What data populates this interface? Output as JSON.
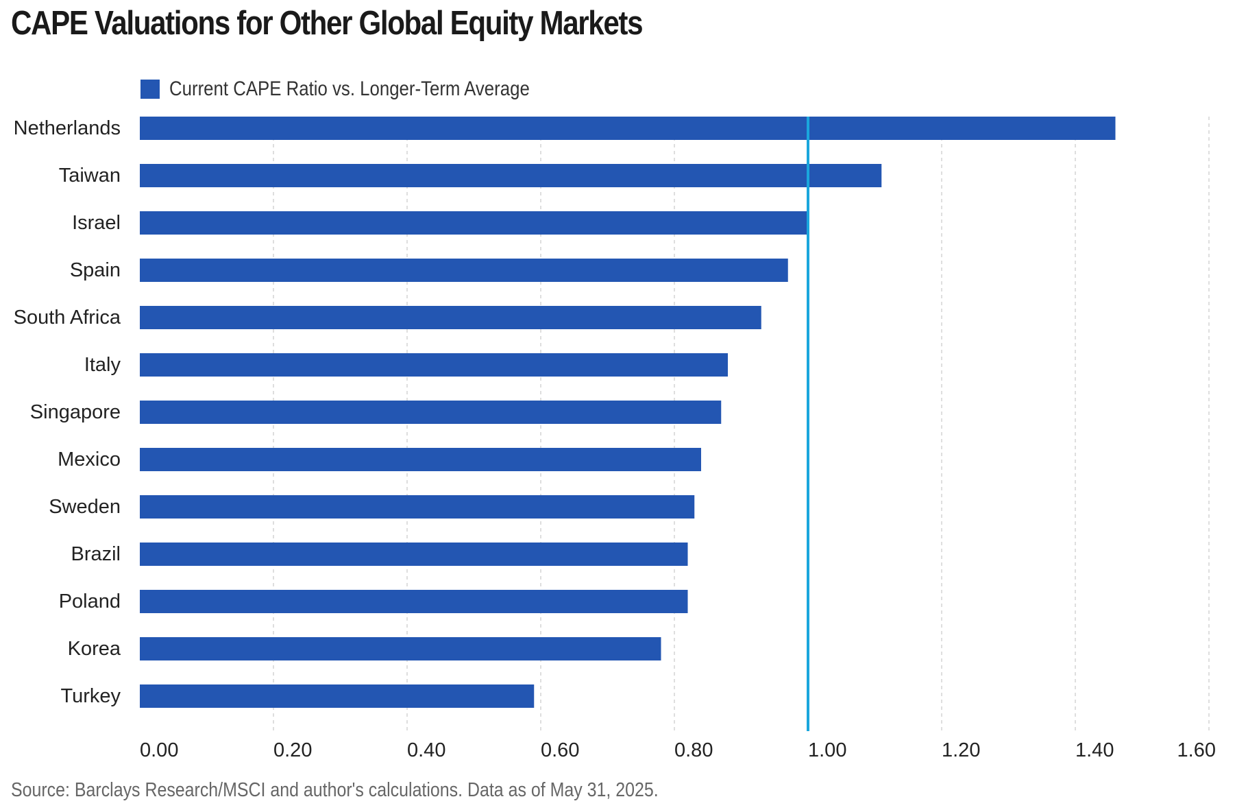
{
  "chart_data": {
    "type": "bar",
    "orientation": "horizontal",
    "title": "CAPE Valuations for Other Global Equity Markets",
    "source": "Source: Barclays Research/MSCI and author's calculations. Data as of May 31, 2025.",
    "categories": [
      "Netherlands",
      "Taiwan",
      "Israel",
      "Spain",
      "South Africa",
      "Italy",
      "Singapore",
      "Mexico",
      "Sweden",
      "Brazil",
      "Poland",
      "Korea",
      "Turkey"
    ],
    "series": [
      {
        "name": "Current CAPE Ratio vs. Longer-Term Average",
        "values": [
          1.46,
          1.11,
          1.0,
          0.97,
          0.93,
          0.88,
          0.87,
          0.84,
          0.83,
          0.82,
          0.82,
          0.78,
          0.59
        ],
        "color": "#2356b2"
      }
    ],
    "reference_line": {
      "value": 1.0,
      "color": "#1aa6dd"
    },
    "xlim": [
      0,
      1.6
    ],
    "xticks": [
      0.0,
      0.2,
      0.4,
      0.6,
      0.8,
      1.0,
      1.2,
      1.4,
      1.6
    ],
    "xtick_labels": [
      "0.00",
      "0.20",
      "0.40",
      "0.60",
      "0.80",
      "1.00",
      "1.20",
      "1.40",
      "1.60"
    ],
    "xlabel": "",
    "ylabel": "",
    "grid": "vertical dashed",
    "legend_position": "top-left"
  }
}
